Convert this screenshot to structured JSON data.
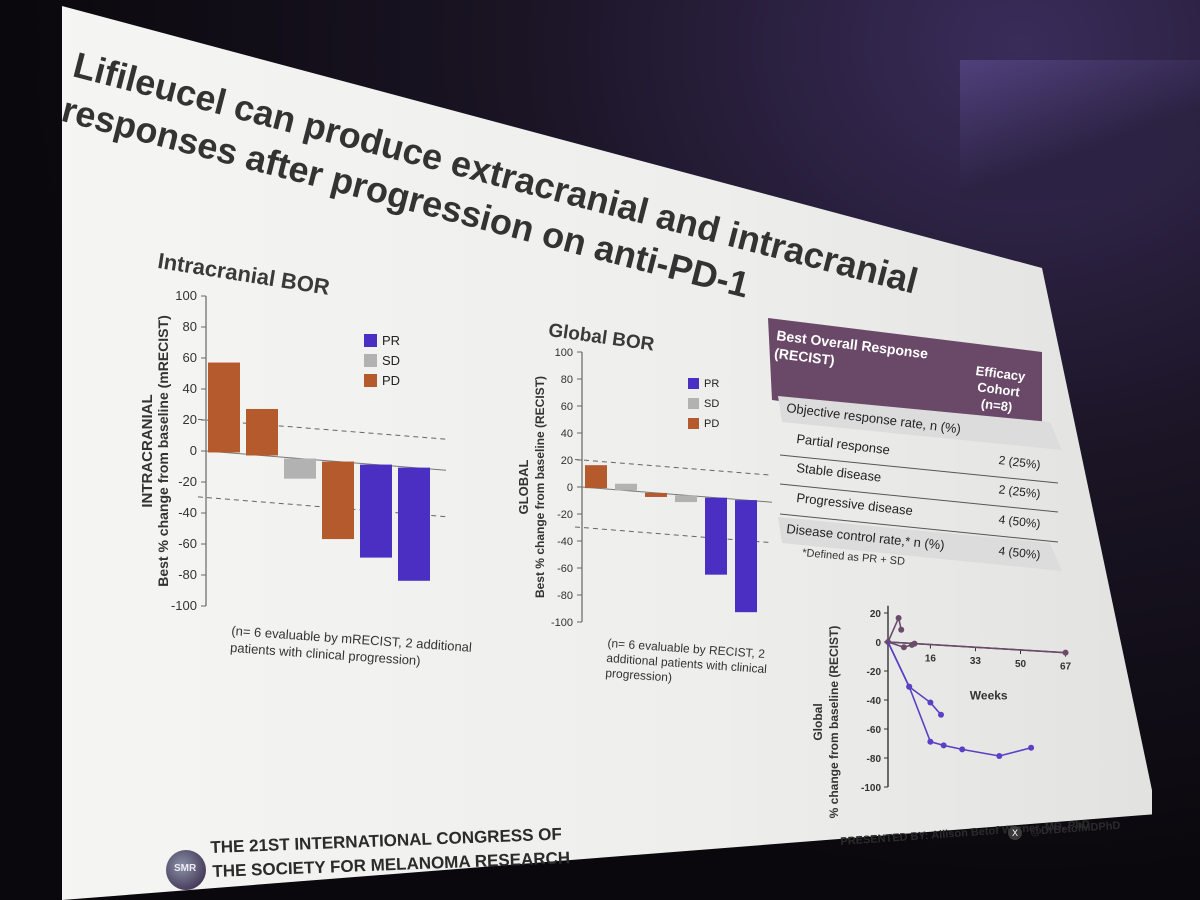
{
  "slide": {
    "title": "Lifileucel can produce extracranial and intracranial responses after progression on anti-PD-1"
  },
  "chart_data": [
    {
      "type": "bar",
      "title": "Intracranial BOR",
      "ylabel_top": "INTRACRANIAL",
      "ylabel": "Best % change from baseline (mRECIST)",
      "ylim": [
        -100,
        100
      ],
      "yticks": [
        100,
        80,
        60,
        40,
        20,
        0,
        -20,
        -40,
        -60,
        -80,
        -100
      ],
      "reference_lines": [
        20,
        -30
      ],
      "legend": [
        "PR",
        "SD",
        "PD"
      ],
      "legend_placement": "top-right",
      "bars": [
        {
          "value": 58,
          "status": "PD"
        },
        {
          "value": 30,
          "status": "PD"
        },
        {
          "value": -13,
          "status": "SD"
        },
        {
          "value": -50,
          "status": "PD"
        },
        {
          "value": -60,
          "status": "PR"
        },
        {
          "value": -73,
          "status": "PR"
        }
      ],
      "note": "(n= 6 evaluable by mRECIST, 2 additional patients with clinical progression)"
    },
    {
      "type": "bar",
      "title": "Global BOR",
      "ylabel_top": "GLOBAL",
      "ylabel": "Best % change from baseline (RECIST)",
      "ylim": [
        -100,
        100
      ],
      "yticks": [
        100,
        80,
        60,
        40,
        20,
        0,
        -20,
        -40,
        -60,
        -80,
        -100
      ],
      "reference_lines": [
        20,
        -30
      ],
      "legend": [
        "PR",
        "SD",
        "PD"
      ],
      "legend_placement": "top-right",
      "bars": [
        {
          "value": 17,
          "status": "PD"
        },
        {
          "value": 5,
          "status": "SD"
        },
        {
          "value": -3,
          "status": "PD"
        },
        {
          "value": -5,
          "status": "SD"
        },
        {
          "value": -57,
          "status": "PR"
        },
        {
          "value": -83,
          "status": "PR"
        }
      ],
      "note": "(n= 6 evaluable by RECIST, 2 additional patients with clinical progression)"
    },
    {
      "type": "line",
      "ylabel_top": "Global",
      "ylabel": "% change from baseline (RECIST)",
      "xlabel": "Weeks",
      "xticks": [
        16,
        33,
        50,
        67
      ],
      "yticks": [
        20,
        0,
        -20,
        -40,
        -60,
        -80,
        -100
      ],
      "xlim": [
        0,
        67
      ],
      "ylim": [
        -100,
        25
      ],
      "series": [
        {
          "color": "#6b4a6a",
          "points": [
            [
              0,
              0
            ],
            [
              4,
              17
            ],
            [
              5,
              9
            ]
          ]
        },
        {
          "color": "#6b4a6a",
          "points": [
            [
              0,
              0
            ],
            [
              6,
              -3
            ],
            [
              9,
              -1
            ]
          ]
        },
        {
          "color": "#6b4a6a",
          "points": [
            [
              0,
              0
            ],
            [
              10,
              0
            ],
            [
              67,
              0
            ]
          ]
        },
        {
          "color": "#5b3fc4",
          "points": [
            [
              0,
              0
            ],
            [
              8,
              -30
            ],
            [
              16,
              -40
            ],
            [
              20,
              -48
            ]
          ]
        },
        {
          "color": "#5b3fc4",
          "points": [
            [
              0,
              0
            ],
            [
              8,
              -30
            ],
            [
              16,
              -67
            ],
            [
              21,
              -69
            ],
            [
              28,
              -71
            ],
            [
              42,
              -74
            ],
            [
              54,
              -67
            ]
          ]
        }
      ]
    }
  ],
  "table": {
    "header_left": "Best Overall Response (RECIST)",
    "header_right": "Efficacy Cohort (n=8)",
    "rows": [
      {
        "label": "Objective response rate, n (%)",
        "value": ""
      },
      {
        "label": "Partial response",
        "value": "2 (25%)"
      },
      {
        "label": "Stable disease",
        "value": "2 (25%)"
      },
      {
        "label": "Progressive disease",
        "value": "4 (50%)"
      },
      {
        "label": "Disease control rate,* n (%)",
        "value": "4 (50%)"
      }
    ],
    "footnote": "*Defined as PR + SD"
  },
  "colors": {
    "PR": "#4a2fc2",
    "SD": "#b2b2b2",
    "PD": "#b45a2c",
    "table_header": "#6a4868",
    "table_shaded": "#dcdcdc"
  },
  "footer": {
    "congress_line1": "THE 21ST INTERNATIONAL CONGRESS OF",
    "congress_line2": "THE SOCIETY FOR MELANOMA RESEARCH",
    "presenter": "PRESENTED BY: Allison Betof Warner, MD, PhD",
    "handle": "@DrBetofMDPhD",
    "logo_text": "SMR"
  }
}
